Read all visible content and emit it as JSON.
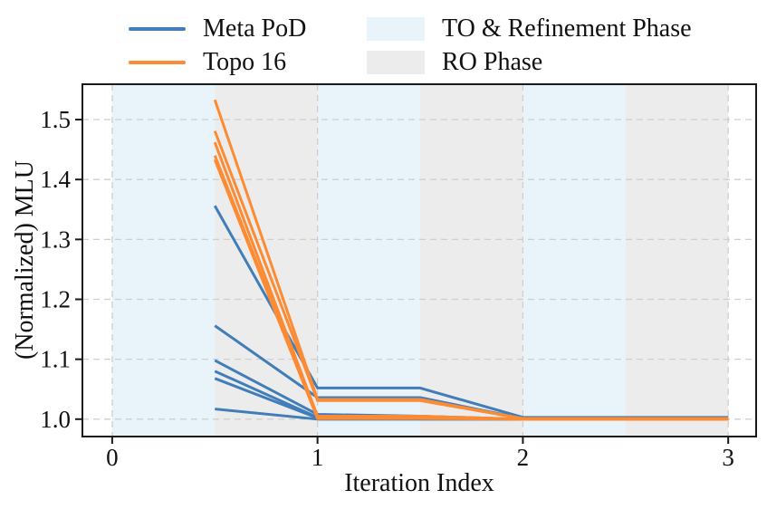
{
  "legend": {
    "meta_pod": "Meta PoD",
    "topo16": "Topo 16",
    "to_phase": "TO & Refinement Phase",
    "ro_phase": "RO Phase"
  },
  "chart_data": {
    "type": "line",
    "title": "",
    "xlabel": "Iteration Index",
    "ylabel": "(Normalized) MLU",
    "xlim": [
      -0.145,
      3.136
    ],
    "ylim": [
      0.971,
      1.559
    ],
    "xticks": [
      0,
      1,
      2,
      3
    ],
    "xtick_labels": [
      "0",
      "1",
      "2",
      "3"
    ],
    "yticks": [
      1.0,
      1.1,
      1.2,
      1.3,
      1.4,
      1.5
    ],
    "ytick_labels": [
      "1.0",
      "1.1",
      "1.2",
      "1.3",
      "1.4",
      "1.5"
    ],
    "grid": true,
    "legend_position": "top",
    "colors": {
      "meta_pod": "#417db9",
      "topo16": "#fc8b33",
      "to_phase": "#e9f3fa",
      "ro_phase": "#ececec",
      "grid": "#cfcfcf",
      "spine": "#1a1a1a"
    },
    "phase_spans": [
      {
        "x0": 0.0,
        "x1": 0.5,
        "phase": "to_phase"
      },
      {
        "x0": 0.5,
        "x1": 1.0,
        "phase": "ro_phase"
      },
      {
        "x0": 1.0,
        "x1": 1.5,
        "phase": "to_phase"
      },
      {
        "x0": 1.5,
        "x1": 2.0,
        "phase": "ro_phase"
      },
      {
        "x0": 2.0,
        "x1": 2.5,
        "phase": "to_phase"
      },
      {
        "x0": 2.5,
        "x1": 3.0,
        "phase": "ro_phase"
      }
    ],
    "series": [
      {
        "name": "Meta PoD run 1",
        "group_key": "meta_pod",
        "x": [
          0.5,
          1,
          1.5,
          2,
          2.5,
          3
        ],
        "y": [
          1.356,
          1.052,
          1.052,
          1.003,
          1.003,
          1.003
        ]
      },
      {
        "name": "Meta PoD run 2",
        "group_key": "meta_pod",
        "x": [
          0.5,
          1,
          1.5,
          2,
          2.5,
          3
        ],
        "y": [
          1.156,
          1.036,
          1.036,
          1.001,
          1.001,
          1.001
        ]
      },
      {
        "name": "Meta PoD run 3",
        "group_key": "meta_pod",
        "x": [
          0.5,
          1,
          1.5,
          2,
          2.5,
          3
        ],
        "y": [
          1.098,
          1.008,
          1.005,
          1.0,
          1.0,
          1.0
        ]
      },
      {
        "name": "Meta PoD run 4",
        "group_key": "meta_pod",
        "x": [
          0.5,
          1,
          1.5,
          2,
          2.5,
          3
        ],
        "y": [
          1.08,
          1.003,
          1.003,
          1.0,
          1.0,
          1.0
        ]
      },
      {
        "name": "Meta PoD run 5",
        "group_key": "meta_pod",
        "x": [
          0.5,
          1,
          1.5,
          2,
          2.5,
          3
        ],
        "y": [
          1.068,
          1.002,
          1.002,
          1.0,
          1.0,
          1.0
        ]
      },
      {
        "name": "Meta PoD run 6",
        "group_key": "meta_pod",
        "x": [
          0.5,
          1,
          1.5,
          2,
          2.5,
          3
        ],
        "y": [
          1.017,
          1.0,
          1.0,
          1.0,
          1.0,
          1.0
        ]
      },
      {
        "name": "Topo 16 run 1",
        "group_key": "topo16",
        "x": [
          0.5,
          1,
          1.5,
          2,
          2.5,
          3
        ],
        "y": [
          1.533,
          1.033,
          1.033,
          1.001,
          1.001,
          1.001
        ]
      },
      {
        "name": "Topo 16 run 2",
        "group_key": "topo16",
        "x": [
          0.5,
          1,
          1.5,
          2,
          2.5,
          3
        ],
        "y": [
          1.481,
          1.031,
          1.031,
          1.001,
          1.001,
          1.001
        ]
      },
      {
        "name": "Topo 16 run 3",
        "group_key": "topo16",
        "x": [
          0.5,
          1,
          1.5,
          2,
          2.5,
          3
        ],
        "y": [
          1.462,
          1.005,
          1.005,
          1.0,
          1.0,
          1.0
        ]
      },
      {
        "name": "Topo 16 run 4",
        "group_key": "topo16",
        "x": [
          0.5,
          1,
          1.5,
          2,
          2.5,
          3
        ],
        "y": [
          1.44,
          1.003,
          1.003,
          1.0,
          1.0,
          1.0
        ]
      },
      {
        "name": "Topo 16 run 5",
        "group_key": "topo16",
        "x": [
          0.5,
          1,
          1.5,
          2,
          2.5,
          3
        ],
        "y": [
          1.433,
          1.001,
          1.001,
          1.0,
          1.0,
          1.0
        ]
      }
    ]
  }
}
